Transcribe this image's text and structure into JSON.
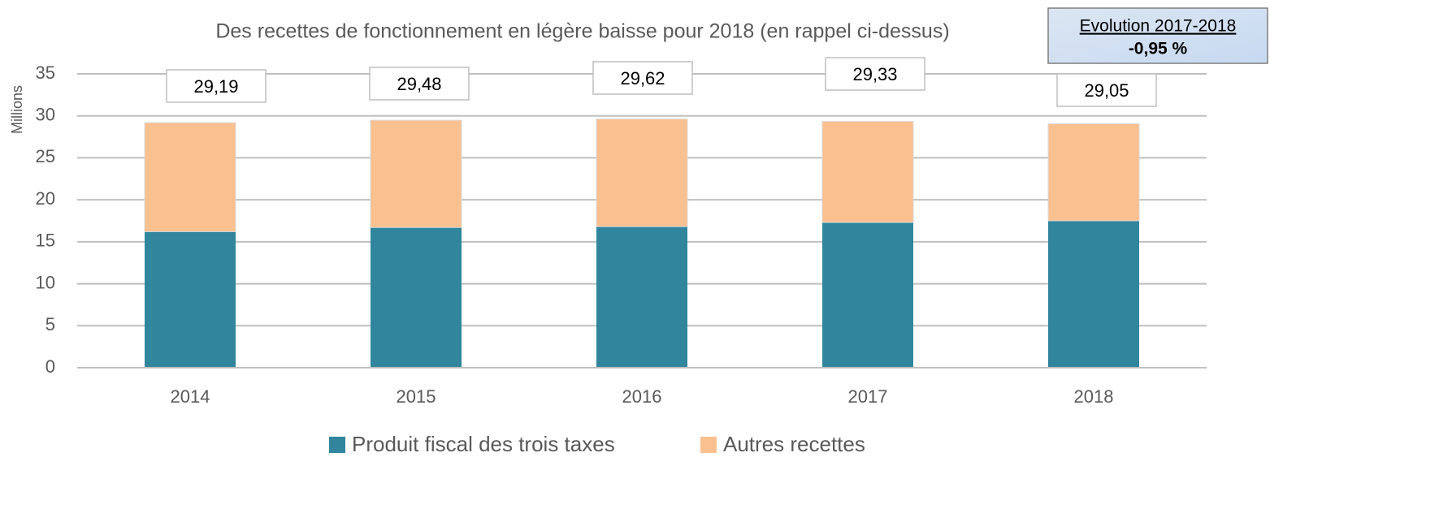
{
  "chart_data": {
    "type": "stacked_bar",
    "title": "Des recettes de fonctionnement  en légère baisse  pour 2018 (en rappel ci-dessus)",
    "y_label": "Millions",
    "categories": [
      "2014",
      "2015",
      "2016",
      "2017",
      "2018"
    ],
    "series": [
      {
        "name": "Produit fiscal des trois taxes",
        "color": "#31859c",
        "values": [
          16.2,
          16.7,
          16.8,
          17.3,
          17.5
        ]
      },
      {
        "name": "Autres recettes",
        "color": "#fac090",
        "values": [
          12.99,
          12.78,
          12.82,
          12.03,
          11.55
        ]
      }
    ],
    "totals": [
      29.19,
      29.48,
      29.62,
      29.33,
      29.05
    ],
    "total_labels": [
      "29,19",
      "29,48",
      "29,62",
      "29,33",
      "29,05"
    ],
    "ylim": [
      0,
      35
    ],
    "yticks": [
      0,
      5,
      10,
      15,
      20,
      25,
      30,
      35
    ],
    "grid": true,
    "legend": "bottom",
    "annotation": {
      "title": "Evolution 2017-2018",
      "value": -0.95,
      "label": "-0,95 %"
    }
  }
}
